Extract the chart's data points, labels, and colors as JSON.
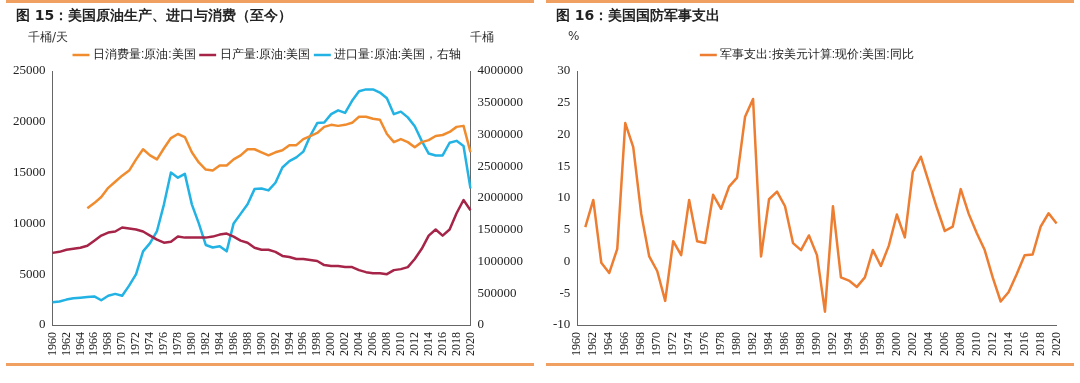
{
  "chart_data": [
    {
      "type": "line",
      "title": "图 15：美国原油生产、进口与消费（至今）",
      "ylabel": "千桶/天",
      "y2label": "千桶",
      "legend": "top",
      "marker": "none",
      "categories": [
        "1960",
        null,
        "1962",
        null,
        "1964",
        null,
        "1966",
        null,
        "1968",
        null,
        "1970",
        null,
        "1972",
        null,
        "1974",
        null,
        "1976",
        null,
        "1978",
        null,
        "1980",
        null,
        "1982",
        null,
        "1984",
        null,
        "1986",
        null,
        "1988",
        null,
        "1990",
        null,
        "1992",
        null,
        "1994",
        null,
        "1996",
        null,
        "1998",
        null,
        "2000",
        null,
        "2002",
        null,
        "2004",
        null,
        "2006",
        null,
        "2008",
        null,
        "2010",
        null,
        "2012",
        null,
        "2014",
        null,
        "2016",
        null,
        "2018",
        null,
        "2020"
      ],
      "ylim": [
        0,
        25000
      ],
      "yticks": [
        0,
        5000,
        10000,
        15000,
        20000,
        25000
      ],
      "y2lim": [
        0,
        4000000
      ],
      "y2ticks": [
        0,
        500000,
        1000000,
        1500000,
        2000000,
        2500000,
        3000000,
        3500000,
        4000000
      ],
      "series": [
        {
          "name": "日消费量:原油:美国",
          "color": "#f08c2e",
          "values": [
            null,
            null,
            null,
            null,
            null,
            11500,
            12000,
            12600,
            13500,
            14100,
            14700,
            15200,
            16300,
            17300,
            16700,
            16300,
            17400,
            18400,
            18800,
            18500,
            17000,
            16000,
            15300,
            15200,
            15700,
            15700,
            16300,
            16700,
            17300,
            17300,
            17000,
            16700,
            17000,
            17200,
            17700,
            17700,
            18300,
            18600,
            18900,
            19500,
            19700,
            19600,
            19700,
            19900,
            20500,
            20500,
            20300,
            20200,
            18800,
            18000,
            18300,
            18000,
            17500,
            18000,
            18200,
            18600,
            18700,
            19000,
            19500,
            19600,
            17000
          ]
        },
        {
          "name": "日产量:原油:美国",
          "color": "#a62448",
          "values": [
            7100,
            7200,
            7400,
            7500,
            7600,
            7800,
            8300,
            8800,
            9100,
            9200,
            9600,
            9500,
            9400,
            9200,
            8800,
            8400,
            8100,
            8200,
            8700,
            8600,
            8600,
            8600,
            8600,
            8700,
            8900,
            9000,
            8700,
            8300,
            8100,
            7600,
            7400,
            7400,
            7200,
            6800,
            6700,
            6500,
            6500,
            6400,
            6300,
            5900,
            5800,
            5800,
            5700,
            5700,
            5400,
            5200,
            5100,
            5100,
            5000,
            5400,
            5500,
            5700,
            6500,
            7500,
            8800,
            9400,
            8800,
            9400,
            11000,
            12300,
            11300
          ]
        },
        {
          "name": "进口量:原油:美国，右轴",
          "color": "#22b2e3",
          "axis": "y2",
          "values": [
            360000,
            370000,
            400000,
            420000,
            430000,
            440000,
            450000,
            390000,
            460000,
            490000,
            460000,
            620000,
            800000,
            1160000,
            1290000,
            1480000,
            1900000,
            2400000,
            2320000,
            2380000,
            1900000,
            1600000,
            1260000,
            1220000,
            1240000,
            1160000,
            1600000,
            1750000,
            1900000,
            2140000,
            2150000,
            2120000,
            2240000,
            2480000,
            2580000,
            2640000,
            2730000,
            2980000,
            3180000,
            3190000,
            3320000,
            3380000,
            3340000,
            3530000,
            3680000,
            3710000,
            3710000,
            3660000,
            3570000,
            3320000,
            3360000,
            3270000,
            3130000,
            2900000,
            2700000,
            2670000,
            2670000,
            2870000,
            2900000,
            2820000,
            2150000
          ]
        }
      ]
    },
    {
      "type": "line",
      "title": "图 16：美国国防军事支出",
      "ylabel": "%",
      "legend": "top",
      "marker": "none",
      "categories": [
        "1960",
        null,
        "1962",
        null,
        "1964",
        null,
        "1966",
        null,
        "1968",
        null,
        "1970",
        null,
        "1972",
        null,
        "1974",
        null,
        "1976",
        null,
        "1978",
        null,
        "1980",
        null,
        "1982",
        null,
        "1984",
        null,
        "1986",
        null,
        "1988",
        null,
        "1990",
        null,
        "1992",
        null,
        "1994",
        null,
        "1996",
        null,
        "1998",
        null,
        "2000",
        null,
        "2002",
        null,
        "2004",
        null,
        "2006",
        null,
        "2008",
        null,
        "2010",
        null,
        "2012",
        null,
        "2014",
        null,
        "2016",
        null,
        "2018",
        null,
        "2020"
      ],
      "ylim": [
        -10,
        30
      ],
      "yticks": [
        -10,
        -5,
        0,
        5,
        10,
        15,
        20,
        25,
        30
      ],
      "series": [
        {
          "name": "军事支出:按美元计算:现价:美国:同比",
          "color": "#ed7d31",
          "values": [
            null,
            5.4,
            9.7,
            -0.2,
            -1.8,
            2.0,
            21.8,
            18.0,
            7.5,
            0.8,
            -1.5,
            -6.2,
            3.2,
            1.0,
            9.7,
            3.2,
            2.9,
            10.5,
            8.3,
            11.8,
            13.2,
            22.8,
            25.6,
            0.8,
            9.8,
            11.0,
            8.7,
            2.9,
            1.8,
            4.1,
            1.0,
            -7.9,
            8.7,
            -2.5,
            -3.0,
            -4.0,
            -2.5,
            1.8,
            -0.7,
            2.5,
            7.4,
            3.8,
            14.1,
            16.5,
            12.5,
            8.5,
            4.8,
            5.5,
            11.4,
            7.5,
            4.5,
            1.8,
            -2.5,
            -6.3,
            -4.8,
            -2.0,
            1.0,
            1.1,
            5.5,
            7.6,
            6.0
          ]
        }
      ]
    }
  ]
}
